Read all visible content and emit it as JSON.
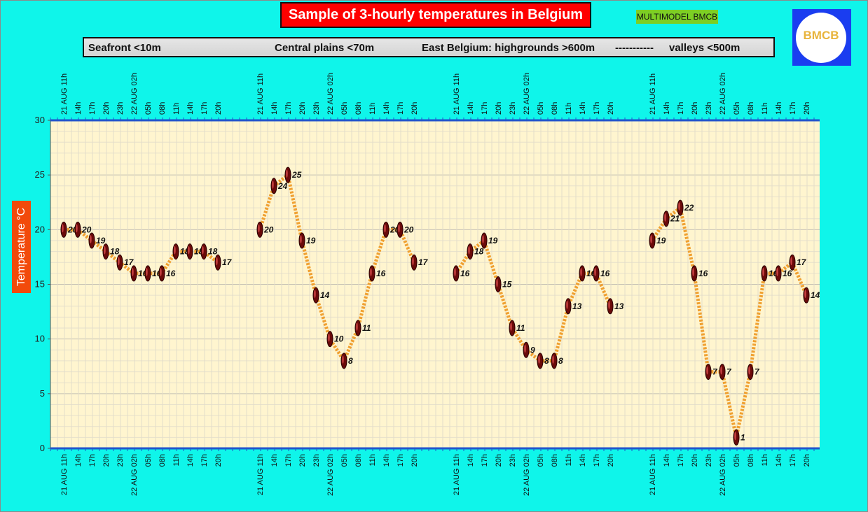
{
  "header": {
    "title": "Sample of 3-hourly temperatures in Belgium",
    "badge": "MULTIMODEL BMCB",
    "logo_text": "BMCB"
  },
  "regions": [
    "Seafront <10m",
    "Central plains <70m",
    "East Belgium: highgrounds >600m",
    "-----------",
    "valleys <500m"
  ],
  "colors": {
    "background": "#0ff5ea",
    "plot_bg": "#fff5cf",
    "title_bg": "#ff0000",
    "badge_bg": "#7ccf24",
    "ylabel_bg": "#f24a0b",
    "line": "#f0a030",
    "marker": "#6a0a0a",
    "axis": "#2255cc"
  },
  "chart_data": {
    "type": "line",
    "title": "Sample of 3-hourly temperatures in Belgium",
    "ylabel": "Temperature °C",
    "ylim": [
      0,
      30
    ],
    "yticks": [
      0,
      5,
      10,
      15,
      20,
      25,
      30
    ],
    "grid": true,
    "categories": [
      "21 AUG 11h",
      "14h",
      "17h",
      "20h",
      "23h",
      "22 AUG 02h",
      "05h",
      "08h",
      "11h",
      "14h",
      "17h",
      "20h"
    ],
    "series": [
      {
        "name": "Seafront <10m",
        "values": [
          20,
          20,
          19,
          18,
          17,
          16,
          16,
          16,
          18,
          18,
          18,
          17
        ]
      },
      {
        "name": "Central plains <70m",
        "values": [
          20,
          24,
          25,
          19,
          14,
          10,
          8,
          11,
          16,
          20,
          20,
          17
        ]
      },
      {
        "name": "East Belgium: highgrounds >600m",
        "values": [
          16,
          18,
          19,
          15,
          11,
          9,
          8,
          8,
          13,
          16,
          16,
          13
        ]
      },
      {
        "name": "valleys <500m",
        "values": [
          19,
          21,
          22,
          16,
          7,
          7,
          1,
          7,
          16,
          16,
          17,
          14
        ]
      }
    ]
  }
}
